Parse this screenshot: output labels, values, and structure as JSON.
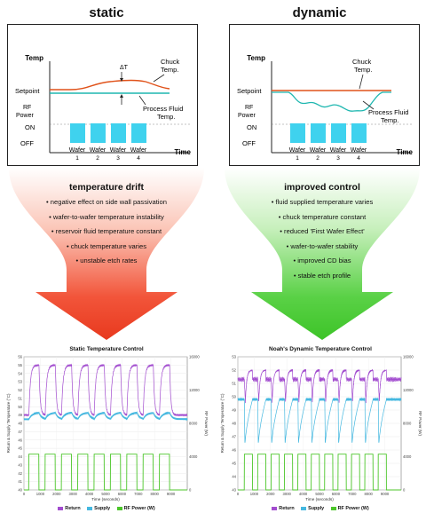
{
  "left": {
    "heading": "static",
    "diagram": {
      "y_label": "Temp",
      "x_label": "Time",
      "setpoint": "Setpoint",
      "rf_power": [
        "RF",
        "Power"
      ],
      "on": "ON",
      "off": "OFF",
      "delta": "ΔT",
      "chuck": [
        "Chuck",
        "Temp."
      ],
      "fluid": [
        "Process Fluid",
        "Temp."
      ],
      "wafers": [
        "Wafer",
        "Wafer",
        "Wafer",
        "Wafer"
      ],
      "wafer_nums": [
        "1",
        "2",
        "3",
        "4"
      ]
    },
    "arrow_title": "temperature drift",
    "bullets": [
      "• negative effect on side wall passivation",
      "• wafer-to-wafer temperature instability",
      "• reservoir fluid temperature constant",
      "• chuck temperature varies",
      "• unstable etch rates"
    ],
    "chart_title": "Static Temperature Control"
  },
  "right": {
    "heading": "dynamic",
    "diagram": {
      "y_label": "Temp",
      "x_label": "Time",
      "setpoint": "Setpoint",
      "rf_power": [
        "RF",
        "Power"
      ],
      "on": "ON",
      "off": "OFF",
      "chuck": [
        "Chuck",
        "Temp."
      ],
      "fluid": [
        "Process Fluid",
        "Temp."
      ],
      "wafers": [
        "Wafer",
        "Wafer",
        "Wafer",
        "Wafer"
      ],
      "wafer_nums": [
        "1",
        "2",
        "3",
        "4"
      ]
    },
    "arrow_title": "improved control",
    "bullets": [
      "• fluid supplied temperature varies",
      "• chuck temperature constant",
      "• reduced 'First Wafer Effect'",
      "• wafer-to-wafer stability",
      "• improved CD bias",
      "• stable etch profile"
    ],
    "chart_title": "Noah's Dynamic Temperature Control"
  },
  "legend": {
    "return": "Return",
    "supply": "Supply",
    "rf": "RF Power (W)"
  },
  "colors": {
    "return": "#a24ccf",
    "supply": "#45b8e0",
    "rf": "#4cc62a",
    "red": "#e8391e",
    "green": "#3dc428",
    "cyan_block": "#3fd2ee"
  },
  "chart_data": [
    {
      "type": "line",
      "title": "Static Temperature Control",
      "xlabel": "Time (seconds)",
      "ylabel": "Return & Supply Temperature (°C)",
      "y2label": "RF Power (W)",
      "x_ticks": [
        "0",
        "1000",
        "2000",
        "3000",
        "4000",
        "5000",
        "6000",
        "7000",
        "8000",
        "9000"
      ],
      "y_ticks": [
        "40",
        "41",
        "42",
        "43",
        "44",
        "45",
        "46",
        "47",
        "48",
        "49",
        "50",
        "51",
        "52",
        "53",
        "54",
        "55",
        "56"
      ],
      "y2_ticks": [
        "0",
        "4000",
        "8000",
        "12000",
        "16000"
      ],
      "xlim": [
        0,
        10000
      ],
      "ylim": [
        40,
        56
      ],
      "y2lim": [
        0,
        16000
      ],
      "series": [
        {
          "name": "Return",
          "baseline": 49.0,
          "peak": 55.0
        },
        {
          "name": "Supply",
          "baseline": 48.5,
          "peak": 49.3
        },
        {
          "name": "RF Power (W)",
          "off": 0,
          "on": 4300
        }
      ],
      "cycles": 9,
      "first_cycle_start": 300,
      "period": 1000,
      "on_duration": 620
    },
    {
      "type": "line",
      "title": "Noah's Dynamic Temperature Control",
      "xlabel": "Time (seconds)",
      "ylabel": "Return & Supply Temperature (°C)",
      "y2label": "RF Power (W)",
      "x_ticks": [
        "0",
        "1000",
        "2000",
        "3000",
        "4000",
        "5000",
        "6000",
        "7000",
        "8000",
        "9000"
      ],
      "y_ticks": [
        "43",
        "44",
        "45",
        "46",
        "47",
        "48",
        "49",
        "50",
        "51",
        "52",
        "53"
      ],
      "y2_ticks": [
        "0",
        "4000",
        "8000",
        "12000",
        "16000"
      ],
      "xlim": [
        0,
        10000
      ],
      "ylim": [
        43,
        53
      ],
      "y2lim": [
        0,
        16000
      ],
      "series": [
        {
          "name": "Return",
          "baseline": 51.3,
          "peak": 52.0,
          "dip": 49.6
        },
        {
          "name": "Supply",
          "baseline": 49.8,
          "dip": 45.5
        },
        {
          "name": "RF Power (W)",
          "off": 0,
          "on": 4300
        }
      ],
      "cycles": 11,
      "first_cycle_start": 400,
      "period": 820,
      "on_duration": 500
    }
  ]
}
